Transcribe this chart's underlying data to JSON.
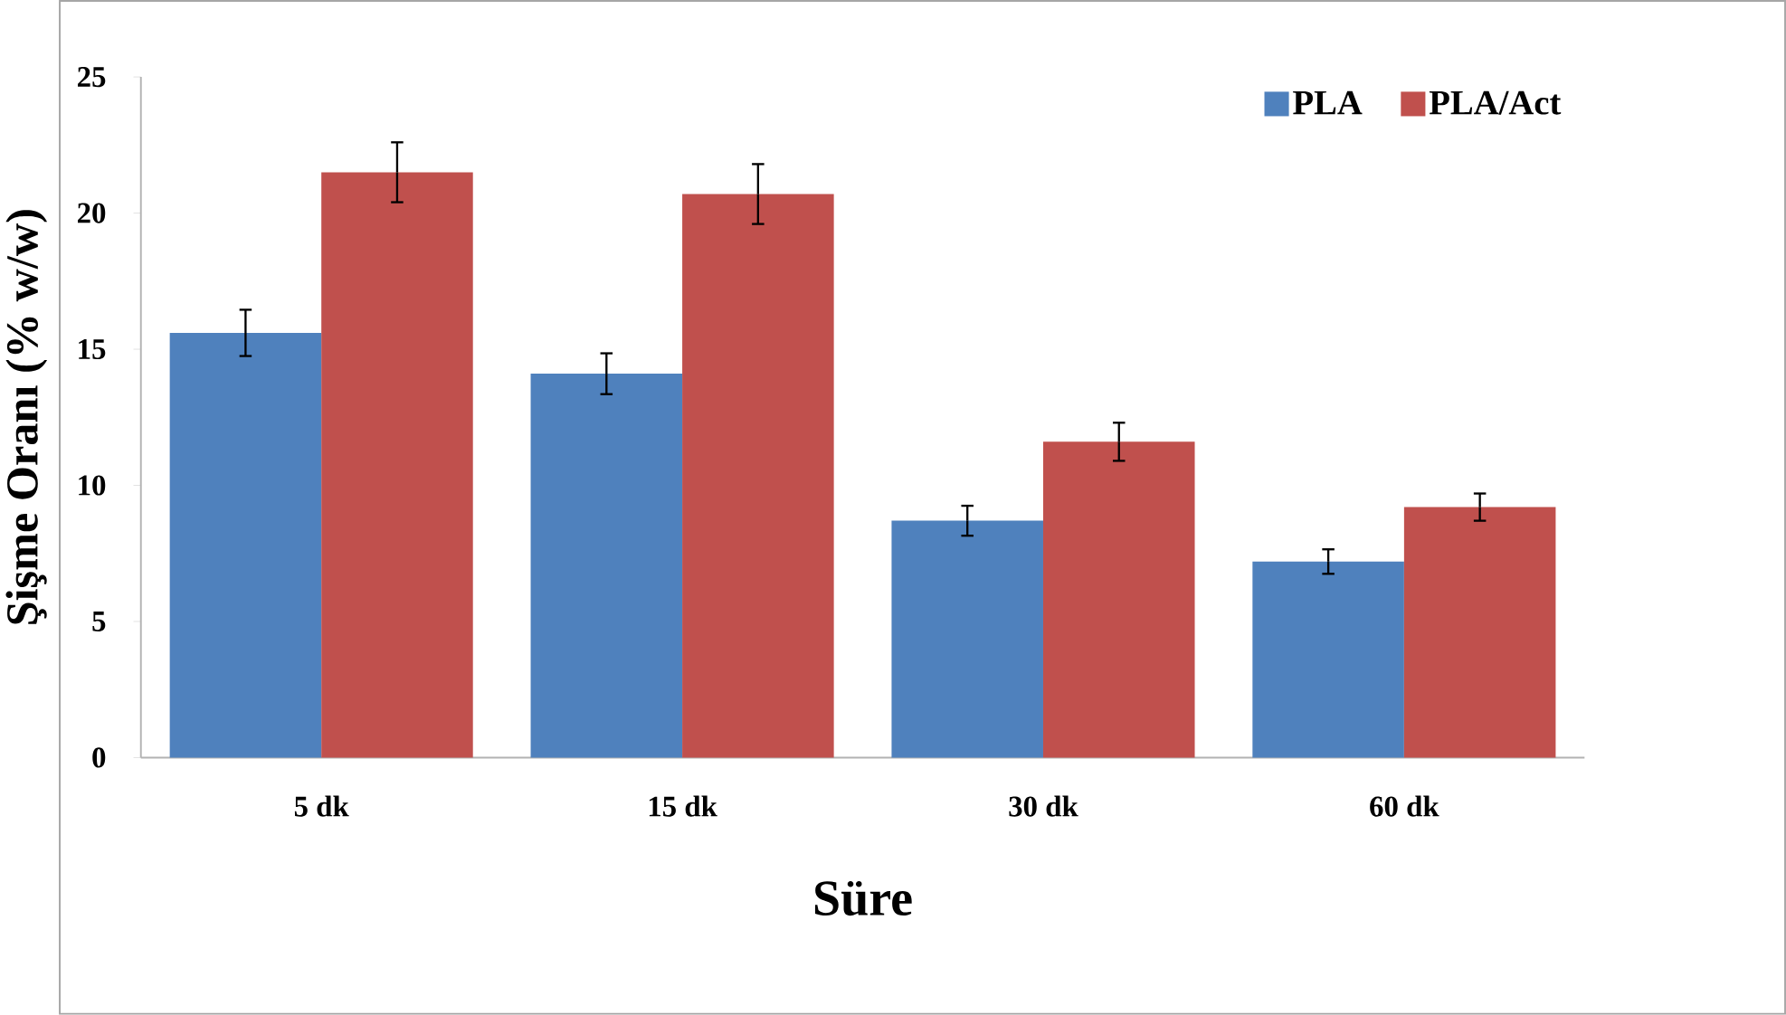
{
  "chart_data": {
    "type": "bar",
    "xlabel": "Süre",
    "ylabel": "Şişme Oranı (% w/w)",
    "categories": [
      "5 dk",
      "15 dk",
      "30 dk",
      "60 dk"
    ],
    "series": [
      {
        "name": "PLA",
        "color": "#4f81bd",
        "values": [
          15.6,
          14.1,
          8.7,
          7.2
        ],
        "errors": [
          0.85,
          0.75,
          0.55,
          0.45
        ]
      },
      {
        "name": "PLA/Act",
        "color": "#c0504d",
        "values": [
          21.5,
          20.7,
          11.6,
          9.2
        ],
        "errors": [
          1.1,
          1.1,
          0.7,
          0.5
        ]
      }
    ],
    "ylim": [
      0,
      25
    ],
    "yticks": [
      0,
      5,
      10,
      15,
      20,
      25
    ],
    "legend": "top right"
  }
}
